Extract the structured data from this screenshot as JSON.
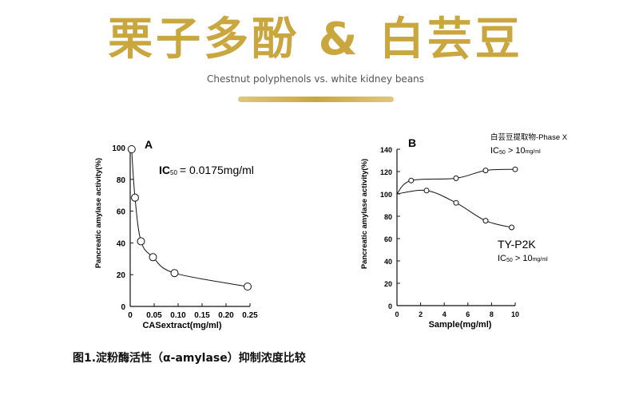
{
  "header": {
    "title": "栗子多酚 & 白芸豆",
    "subtitle": "Chestnut polyphenols vs. white kidney beans"
  },
  "colors": {
    "gold": "#caa63e",
    "gold_bar_light": "#e0c77a",
    "ink": "#111111"
  },
  "chart_data": [
    {
      "type": "line",
      "panel_label": "A",
      "xlabel": "CASextract(mg/ml)",
      "ylabel": "Pancreatic amylase activity(%)",
      "xlim": [
        0,
        0.25
      ],
      "ylim": [
        0,
        100
      ],
      "x_ticks": [
        "0",
        "0.05",
        "0.10",
        "0.15",
        "0.20",
        "0.25"
      ],
      "y_ticks": [
        "0",
        "20",
        "40",
        "60",
        "80",
        "100"
      ],
      "annotation": {
        "main": "IC",
        "sub": "50",
        "rest": "= 0.0175mg/ml"
      },
      "series": [
        {
          "x": [
            0.003,
            0.01,
            0.0225,
            0.0475,
            0.0925,
            0.245
          ],
          "y": [
            99,
            68.5,
            41,
            31,
            21,
            12.5
          ]
        }
      ],
      "grid": false
    },
    {
      "type": "line",
      "panel_label": "B",
      "xlabel": "Sample(mg/ml)",
      "ylabel": "Pancreatic amylase activity(%)",
      "xlim": [
        0,
        10
      ],
      "ylim": [
        0,
        140
      ],
      "x_ticks": [
        "0",
        "2",
        "4",
        "6",
        "8",
        "10"
      ],
      "y_ticks": [
        "0",
        "20",
        "40",
        "60",
        "80",
        "100",
        "120",
        "140"
      ],
      "series": [
        {
          "name": "白芸豆提取物-Phase X",
          "label_sub": {
            "main": "IC",
            "sub": "50",
            "rest": " > 10",
            "unit": "mg/ml"
          },
          "x": [
            0,
            1.2,
            5,
            7.5,
            10
          ],
          "y": [
            100,
            112,
            114,
            121,
            122
          ]
        },
        {
          "name": "TY-P2K",
          "label_sub": {
            "main": "IC",
            "sub": "50",
            "rest": " > 10",
            "unit": "mg/ml"
          },
          "x": [
            0,
            2.5,
            5,
            7.5,
            9.7
          ],
          "y": [
            100,
            103,
            92,
            76,
            70
          ]
        }
      ],
      "grid": false
    }
  ],
  "caption": "图1.淀粉酶活性（α-amylase）抑制浓度比较"
}
